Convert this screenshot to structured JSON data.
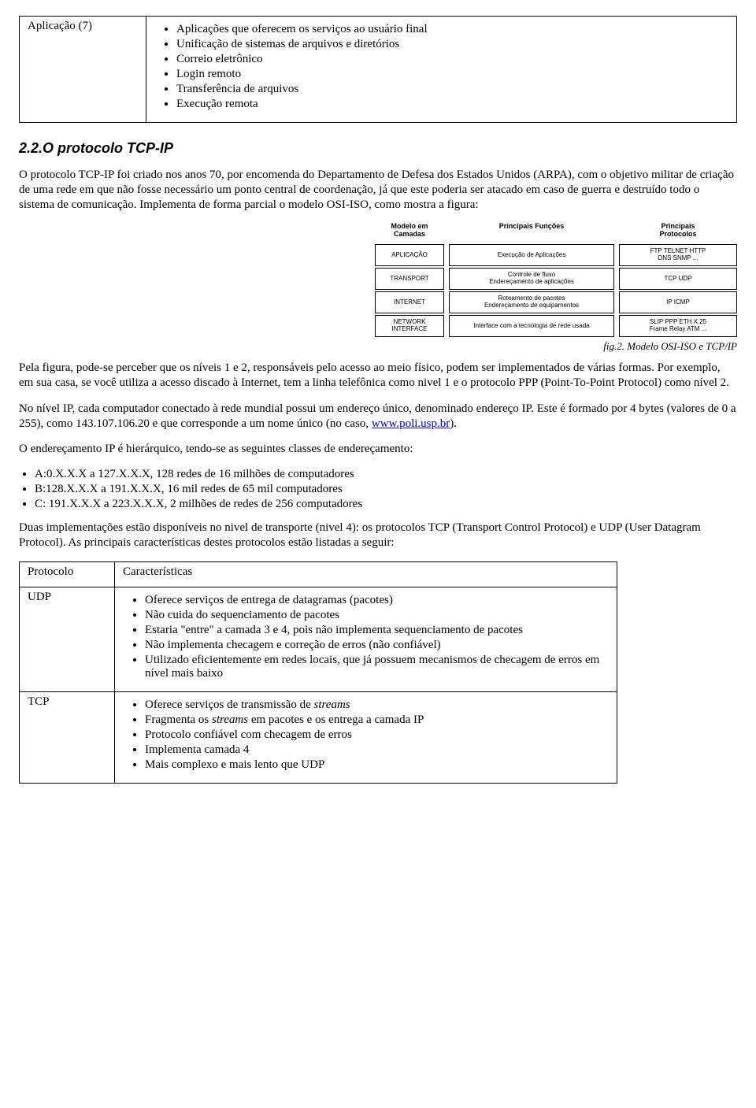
{
  "layer_table": {
    "left_label": "Aplicação (7)",
    "bullets": [
      "Aplicações que oferecem os serviços ao usuário final",
      "Unificação de sistemas de arquivos e diretórios",
      "Correio eletrônico",
      "Login remoto",
      "Transferência de arquivos",
      "Execução remota"
    ]
  },
  "section_title": "2.2.O protocolo TCP-IP",
  "p1": "O protocolo TCP-IP foi criado nos anos 70, por encomenda do Departamento de Defesa dos Estados Unidos (ARPA), com o objetivo militar de criação de uma rede em que não fosse necessário um ponto central de coordenação, já que este poderia ser atacado em caso de guerra e destruído todo o sistema de comunicação. Implementa de forma parcial o modelo OSI-ISO, como mostra a figura:",
  "figure": {
    "headers": {
      "layers": "Modelo em\nCamadas",
      "functions": "Principais Funções",
      "protocols": "Principais\nProtocolos"
    },
    "layers": [
      "APLICAÇÃO",
      "TRANSPORT",
      "INTERNET",
      "NETWORK\nINTERFACE"
    ],
    "functions": [
      "Execução de Aplicações",
      "Controle de fluxo\nEndereçamento de aplicações",
      "Roteamento de pacotes\nEndereçamento de equipamentos",
      "Interface com a tecnologia de rede usada"
    ],
    "protocols": [
      "FTP  TELNET  HTTP\nDNS  SNMP  ...",
      "TCP  UDP",
      "IP  ICMP",
      "SLIP  PPP  ETH  X.25\nFrame Relay  ATM ..."
    ],
    "caption": "fig.2. Modelo OSI-ISO e TCP/IP"
  },
  "p2": "Pela figura, pode-se perceber que os níveis 1 e 2, responsáveis pelo acesso ao meio físico, podem ser implementados de várias formas. Por exemplo, em sua casa, se você utiliza a acesso discado à Internet, tem a linha telefônica como nivel 1 e o protocolo PPP (Point-To-Point Protocol) como nível 2.",
  "p3_pre": "No nível IP, cada computador conectado à rede mundial possui um endereço único, denominado endereço IP. Este é formado por 4 bytes (valores de 0 a 255), como 143.107.106.20 e que corresponde a um nome único (no caso, ",
  "p3_link": "www.poli.usp.br",
  "p3_post": ").",
  "p4": "O endereçamento IP é hierárquico, tendo-se as seguintes classes de endereçamento:",
  "classes": [
    "A:0.X.X.X a 127.X.X.X, 128 redes de 16 milhões de computadores",
    "B:128.X.X.X a 191.X.X.X, 16 mil redes de 65 mil computadores",
    "C: 191.X.X.X a 223.X.X.X, 2 milhões de redes de 256 computadores"
  ],
  "p5": "Duas implementações estão disponíveis no nivel de transporte (nivel 4): os protocolos TCP (Transport Control Protocol) e UDP (User Datagram Protocol). As principais características destes protocolos estão listadas a seguir:",
  "proto_table": {
    "header": {
      "c1": "Protocolo",
      "c2": "Características"
    },
    "rows": [
      {
        "name": "UDP",
        "items": [
          "Oferece serviços de entrega de datagramas (pacotes)",
          "Não cuida do sequenciamento de pacotes",
          "Estaria \"entre\" a camada 3 e 4, pois não implementa sequenciamento de pacotes",
          "Não implementa checagem e correção de erros (não confiável)",
          "Utilizado eficientemente em redes locais, que já possuem mecanismos de checagem de erros em nível mais baixo"
        ]
      },
      {
        "name": "TCP",
        "items": [
          "Oferece serviços de transmissão de <i>streams</i>",
          "Fragmenta os <i>streams</i> em pacotes e os entrega a camada IP",
          "Protocolo confiável com checagem de erros",
          "Implementa camada 4",
          "Mais complexo e mais lento que UDP"
        ]
      }
    ]
  }
}
